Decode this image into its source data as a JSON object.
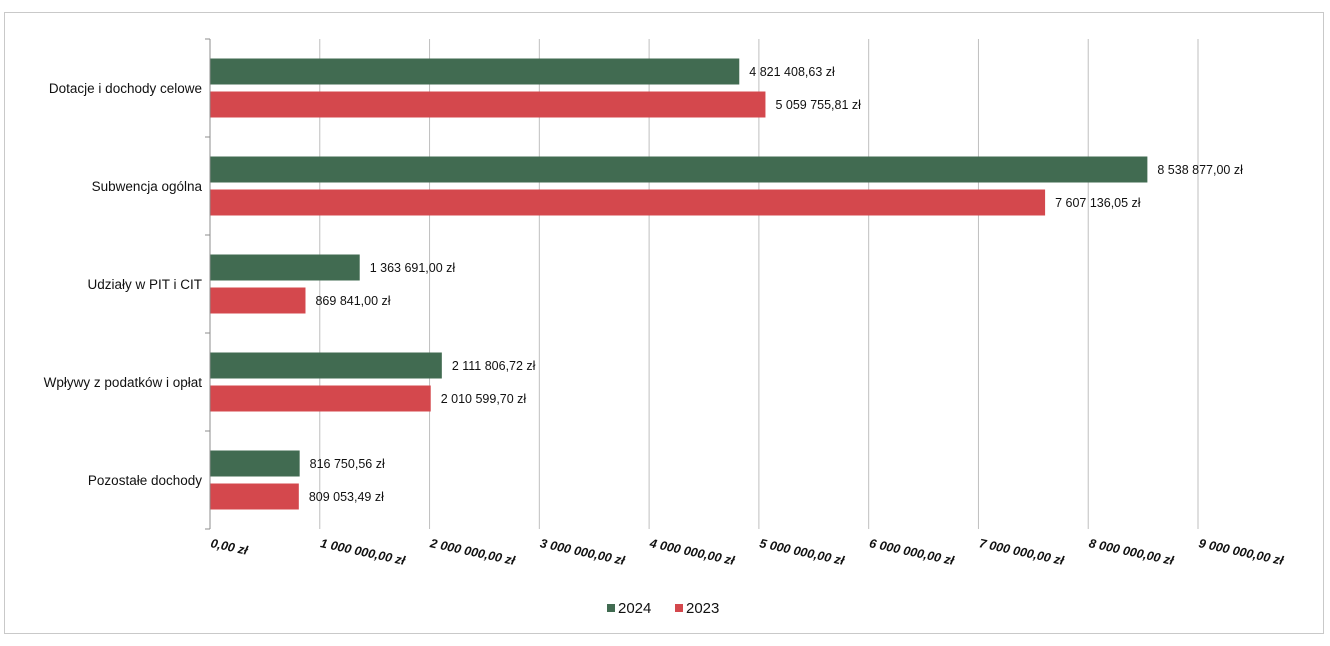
{
  "chart_data": {
    "type": "bar",
    "orientation": "horizontal",
    "categories": [
      "Dotacje i dochody celowe",
      "Subwencja ogólna",
      "Udziały w PIT i CIT",
      "Wpływy z podatków i opłat",
      "Pozostałe dochody"
    ],
    "series": [
      {
        "name": "2024",
        "color": "#416b51",
        "values": [
          4821408.63,
          8538877.0,
          1363691.0,
          2111806.72,
          816750.56
        ],
        "labels": [
          "4 821 408,63 zł",
          "8 538 877,00 zł",
          "1 363 691,00 zł",
          "2 111 806,72 zł",
          "816 750,56 zł"
        ]
      },
      {
        "name": "2023",
        "color": "#d4484d",
        "values": [
          5059755.81,
          7607136.05,
          869841.0,
          2010599.7,
          809053.49
        ],
        "labels": [
          "5 059 755,81 zł",
          "7 607 136,05 zł",
          "869 841,00 zł",
          "2 010 599,70 zł",
          "809 053,49 zł"
        ]
      }
    ],
    "xlim": [
      0,
      9000000
    ],
    "x_ticks": [
      0,
      1000000,
      2000000,
      3000000,
      4000000,
      5000000,
      6000000,
      7000000,
      8000000,
      9000000
    ],
    "x_tick_labels": [
      "0,00 zł",
      "1 000 000,00 zł",
      "2 000 000,00 zł",
      "3 000 000,00 zł",
      "4 000 000,00 zł",
      "5 000 000,00 zł",
      "6 000 000,00 zł",
      "7 000 000,00 zł",
      "8 000 000,00 zł",
      "9 000 000,00 zł"
    ],
    "grid": true,
    "legend_position": "bottom",
    "title": "",
    "xlabel": "",
    "ylabel": ""
  }
}
